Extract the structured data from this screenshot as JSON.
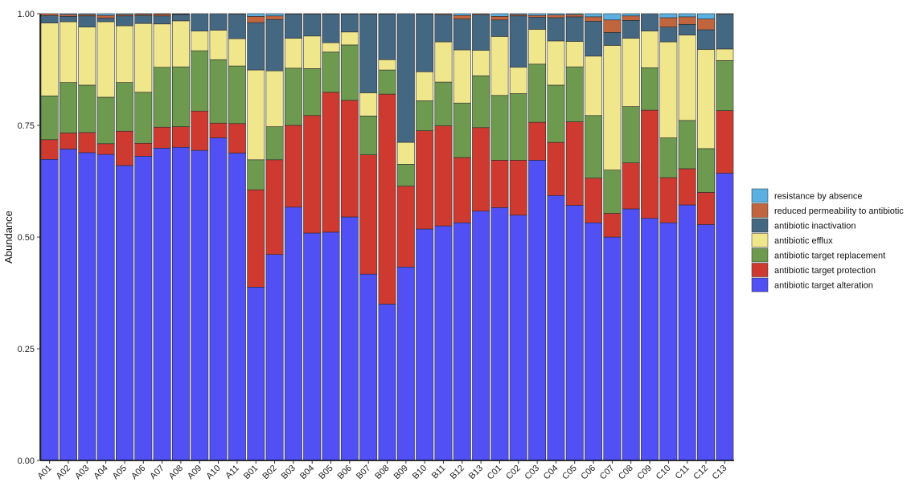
{
  "chart_data": {
    "type": "bar",
    "stacked": true,
    "ylabel": "Abundance",
    "xlabel": "",
    "ylim": [
      0,
      1
    ],
    "yticks": [
      "0.00",
      "0.25",
      "0.50",
      "0.75",
      "1.00"
    ],
    "grid": false,
    "legend_position": "right",
    "categories": [
      "A01",
      "A02",
      "A03",
      "A04",
      "A05",
      "A06",
      "A07",
      "A08",
      "A09",
      "A10",
      "A11",
      "B01",
      "B02",
      "B03",
      "B04",
      "B05",
      "B06",
      "B07",
      "B08",
      "B09",
      "B10",
      "B11",
      "B12",
      "B13",
      "C01",
      "C02",
      "C03",
      "C04",
      "C05",
      "C06",
      "C07",
      "C08",
      "C09",
      "C10",
      "C11",
      "C12",
      "C13"
    ],
    "series": [
      {
        "name": "antibiotic target alteration",
        "color": "#5050f5",
        "values": [
          0.674,
          0.697,
          0.689,
          0.685,
          0.66,
          0.681,
          0.699,
          0.701,
          0.694,
          0.722,
          0.688,
          0.388,
          0.461,
          0.567,
          0.509,
          0.511,
          0.545,
          0.417,
          0.35,
          0.433,
          0.518,
          0.525,
          0.532,
          0.558,
          0.566,
          0.549,
          0.672,
          0.593,
          0.571,
          0.532,
          0.5,
          0.563,
          0.542,
          0.532,
          0.572,
          0.528,
          0.643
        ]
      },
      {
        "name": "antibiotic target protection",
        "color": "#cf3a30",
        "values": [
          0.044,
          0.036,
          0.045,
          0.024,
          0.077,
          0.029,
          0.047,
          0.046,
          0.088,
          0.033,
          0.066,
          0.218,
          0.212,
          0.183,
          0.263,
          0.313,
          0.261,
          0.267,
          0.47,
          0.181,
          0.22,
          0.224,
          0.146,
          0.187,
          0.106,
          0.123,
          0.085,
          0.119,
          0.187,
          0.1,
          0.053,
          0.103,
          0.242,
          0.101,
          0.081,
          0.072,
          0.14
        ]
      },
      {
        "name": "antibiotic target replacement",
        "color": "#6e9a50",
        "values": [
          0.098,
          0.113,
          0.106,
          0.104,
          0.109,
          0.114,
          0.134,
          0.134,
          0.135,
          0.142,
          0.129,
          0.067,
          0.074,
          0.128,
          0.105,
          0.09,
          0.124,
          0.087,
          0.054,
          0.049,
          0.067,
          0.098,
          0.122,
          0.116,
          0.145,
          0.149,
          0.13,
          0.128,
          0.123,
          0.14,
          0.097,
          0.126,
          0.095,
          0.089,
          0.108,
          0.098,
          0.112
        ]
      },
      {
        "name": "antibiotic efflux",
        "color": "#f0e68c",
        "values": [
          0.163,
          0.136,
          0.13,
          0.169,
          0.127,
          0.154,
          0.097,
          0.103,
          0.044,
          0.066,
          0.061,
          0.201,
          0.125,
          0.067,
          0.073,
          0.021,
          0.029,
          0.052,
          0.023,
          0.049,
          0.065,
          0.09,
          0.119,
          0.057,
          0.132,
          0.059,
          0.078,
          0.099,
          0.057,
          0.133,
          0.279,
          0.153,
          0.082,
          0.215,
          0.191,
          0.222,
          0.026
        ]
      },
      {
        "name": "antibiotic inactivation",
        "color": "#456882",
        "values": [
          0.017,
          0.012,
          0.025,
          0.008,
          0.022,
          0.018,
          0.018,
          0.014,
          0.039,
          0.037,
          0.055,
          0.106,
          0.115,
          0.054,
          0.049,
          0.064,
          0.04,
          0.176,
          0.102,
          0.288,
          0.129,
          0.061,
          0.069,
          0.08,
          0.037,
          0.115,
          0.027,
          0.052,
          0.055,
          0.078,
          0.029,
          0.04,
          0.039,
          0.033,
          0.024,
          0.044,
          0.078
        ]
      },
      {
        "name": "reduced permeability to antibiotic",
        "color": "#c0653e",
        "values": [
          0.004,
          0.004,
          0.003,
          0.006,
          0.003,
          0.003,
          0.004,
          0.001,
          0.0,
          0.0,
          0.001,
          0.014,
          0.008,
          0.001,
          0.001,
          0.001,
          0.001,
          0.001,
          0.001,
          0.0,
          0.001,
          0.002,
          0.008,
          0.002,
          0.008,
          0.003,
          0.004,
          0.006,
          0.005,
          0.01,
          0.028,
          0.01,
          0.0,
          0.021,
          0.017,
          0.024,
          0.0
        ]
      },
      {
        "name": "resistance by absence",
        "color": "#5ab0e0",
        "values": [
          0.0,
          0.002,
          0.002,
          0.004,
          0.002,
          0.001,
          0.001,
          0.001,
          0.0,
          0.0,
          0.0,
          0.006,
          0.005,
          0.0,
          0.0,
          0.0,
          0.0,
          0.0,
          0.0,
          0.0,
          0.0,
          0.0,
          0.004,
          0.0,
          0.006,
          0.002,
          0.004,
          0.003,
          0.002,
          0.007,
          0.014,
          0.005,
          0.0,
          0.009,
          0.007,
          0.012,
          0.001
        ]
      }
    ]
  }
}
